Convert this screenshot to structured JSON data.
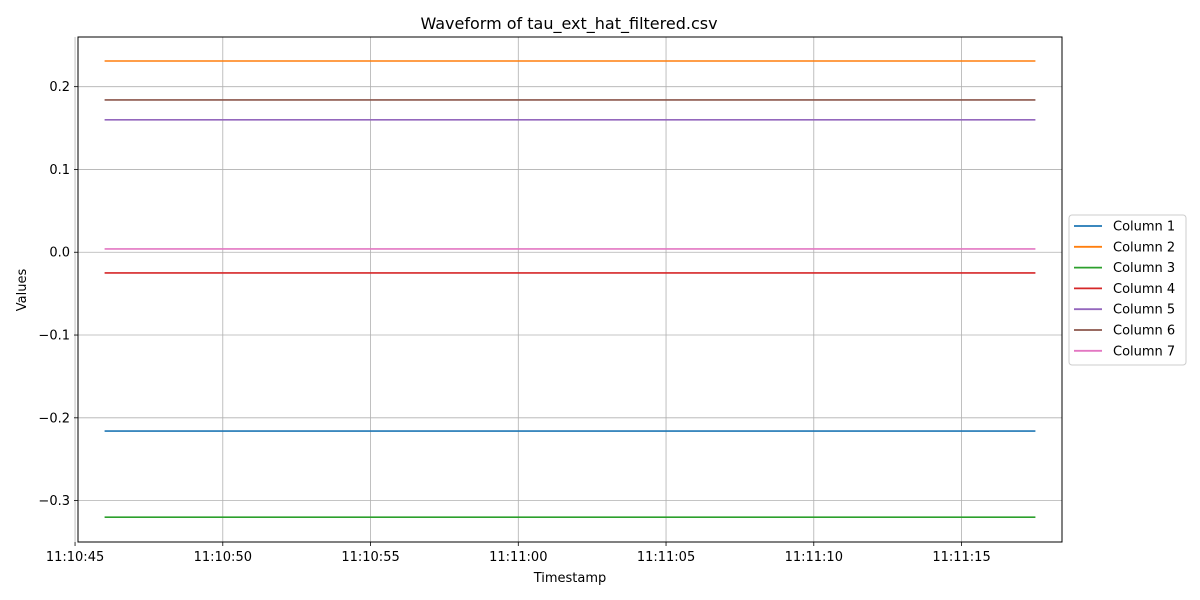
{
  "chart_data": {
    "type": "line",
    "title": "Waveform of tau_ext_hat_filtered.csv",
    "xlabel": "Timestamp",
    "ylabel": "Values",
    "x_start": "11:10:46",
    "x_end": "11:11:17.5",
    "xlim": [
      "11:10:45.1",
      "11:11:18.4"
    ],
    "ylim": [
      -0.35,
      0.26
    ],
    "xticks": [
      "11:10:45",
      "11:10:50",
      "11:10:55",
      "11:11:00",
      "11:11:05",
      "11:11:10",
      "11:11:15"
    ],
    "yticks": [
      -0.3,
      -0.2,
      -0.1,
      0.0,
      0.1,
      0.2
    ],
    "ytick_labels": [
      "−0.3",
      "−0.2",
      "−0.1",
      "0.0",
      "0.1",
      "0.2"
    ],
    "grid": true,
    "legend": "center-right-outside",
    "series": [
      {
        "name": "Column 1",
        "color": "#1f77b4",
        "value": -0.216
      },
      {
        "name": "Column 2",
        "color": "#ff7f0e",
        "value": 0.231
      },
      {
        "name": "Column 3",
        "color": "#2ca02c",
        "value": -0.32
      },
      {
        "name": "Column 4",
        "color": "#d62728",
        "value": -0.025
      },
      {
        "name": "Column 5",
        "color": "#9467bd",
        "value": 0.16
      },
      {
        "name": "Column 6",
        "color": "#8c564b",
        "value": 0.184
      },
      {
        "name": "Column 7",
        "color": "#e377c2",
        "value": 0.004
      }
    ]
  }
}
